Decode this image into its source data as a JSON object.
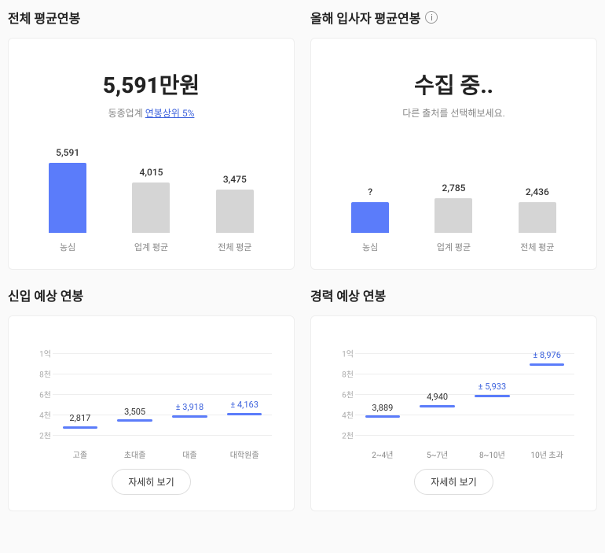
{
  "colors": {
    "primary": "#5b7cfa",
    "accent_text": "#3e63dd",
    "muted_bar": "#d5d5d5",
    "grid": "#eeeeee",
    "text": "#222222",
    "text_muted": "#888888",
    "card_bg": "#ffffff",
    "page_bg": "#fafafa"
  },
  "overall": {
    "title": "전체 평균연봉",
    "big_value": "5,591만원",
    "sub_prefix": "동종업계 ",
    "sub_accent": "연봉상위 5%",
    "chart": {
      "type": "bar",
      "y_max": 6000,
      "bars": [
        {
          "label_top": "5,591",
          "label_bottom": "농심",
          "value": 5591,
          "color": "#5b7cfa"
        },
        {
          "label_top": "4,015",
          "label_bottom": "업계 평균",
          "value": 4015,
          "color": "#d5d5d5"
        },
        {
          "label_top": "3,475",
          "label_bottom": "전체 평균",
          "value": 3475,
          "color": "#d5d5d5"
        }
      ]
    }
  },
  "thisyear": {
    "title": "올해 입사자 평균연봉",
    "big_value": "수집 중..",
    "sub_text": "다른 출처를 선택해보세요.",
    "chart": {
      "type": "bar",
      "y_max": 6000,
      "bars": [
        {
          "label_top": "?",
          "label_bottom": "농심",
          "value": 2450,
          "color": "#5b7cfa"
        },
        {
          "label_top": "2,785",
          "label_bottom": "업계 평균",
          "value": 2785,
          "color": "#d5d5d5"
        },
        {
          "label_top": "2,436",
          "label_bottom": "전체 평균",
          "value": 2436,
          "color": "#d5d5d5"
        }
      ]
    }
  },
  "rookie": {
    "title": "신입 예상 연봉",
    "detail_label": "자세히 보기",
    "chart": {
      "type": "step",
      "y_ticks": [
        {
          "label": "1억",
          "value": 10000
        },
        {
          "label": "8천",
          "value": 8000
        },
        {
          "label": "6천",
          "value": 6000
        },
        {
          "label": "4천",
          "value": 4000
        },
        {
          "label": "2천",
          "value": 2000
        }
      ],
      "y_min": 1000,
      "y_max": 11000,
      "points": [
        {
          "x_label": "고졸",
          "value": 2817,
          "display": "2,817",
          "accent": false
        },
        {
          "x_label": "초대졸",
          "value": 3505,
          "display": "3,505",
          "accent": false
        },
        {
          "x_label": "대졸",
          "value": 3918,
          "display": "± 3,918",
          "accent": true
        },
        {
          "x_label": "대학원졸",
          "value": 4163,
          "display": "± 4,163",
          "accent": true
        }
      ]
    }
  },
  "career": {
    "title": "경력 예상 연봉",
    "detail_label": "자세히 보기",
    "chart": {
      "type": "step",
      "y_ticks": [
        {
          "label": "1억",
          "value": 10000
        },
        {
          "label": "8천",
          "value": 8000
        },
        {
          "label": "6천",
          "value": 6000
        },
        {
          "label": "4천",
          "value": 4000
        },
        {
          "label": "2천",
          "value": 2000
        }
      ],
      "y_min": 1000,
      "y_max": 11000,
      "points": [
        {
          "x_label": "2~4년",
          "value": 3889,
          "display": "3,889",
          "accent": false
        },
        {
          "x_label": "5~7년",
          "value": 4940,
          "display": "4,940",
          "accent": false
        },
        {
          "x_label": "8~10년",
          "value": 5933,
          "display": "± 5,933",
          "accent": true
        },
        {
          "x_label": "10년 초과",
          "value": 8976,
          "display": "± 8,976",
          "accent": true
        }
      ]
    }
  }
}
